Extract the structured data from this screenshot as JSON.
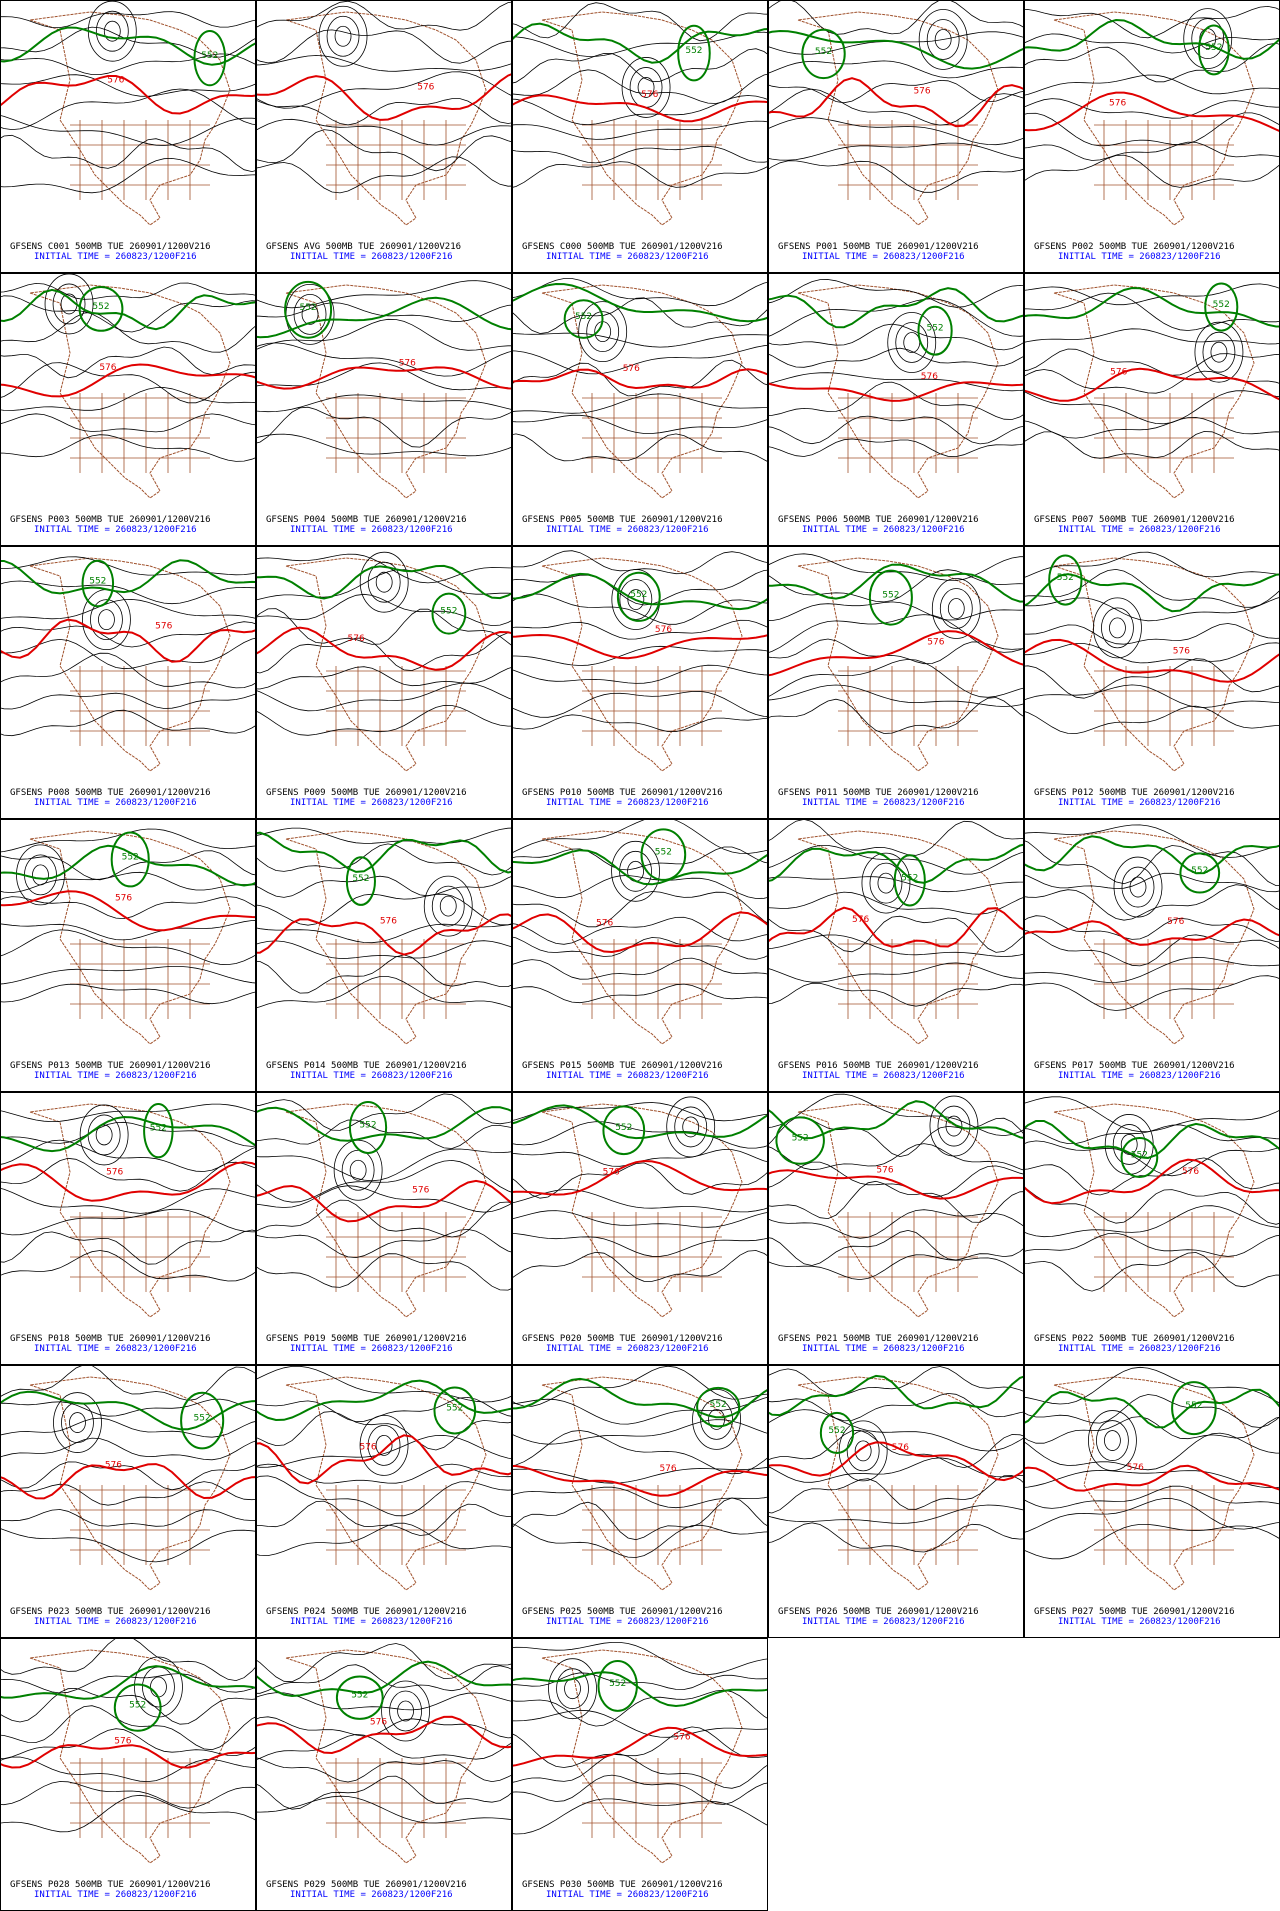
{
  "panels": [
    {
      "model": "GFSENS C001 500MB TUE 260901/1200V216",
      "initial": "INITIAL TIME = 260823/1200F216",
      "contours": [
        "552",
        "576"
      ]
    },
    {
      "model": "GFSENS AVG 500MB TUE 260901/1200V216",
      "initial": "INITIAL TIME = 260823/1200F216",
      "contours": [
        "576"
      ]
    },
    {
      "model": "GFSENS C000 500MB TUE 260901/1200V216",
      "initial": "INITIAL TIME = 260823/1200F216",
      "contours": [
        "552",
        "576"
      ]
    },
    {
      "model": "GFSENS P001 500MB TUE 260901/1200V216",
      "initial": "INITIAL TIME = 260823/1200F216",
      "contours": [
        "552",
        "576"
      ]
    },
    {
      "model": "GFSENS P002 500MB TUE 260901/1200V216",
      "initial": "INITIAL TIME = 260823/1200F216",
      "contours": [
        "552",
        "576"
      ]
    },
    {
      "model": "GFSENS P003 500MB TUE 260901/1200V216",
      "initial": "INITIAL TIME = 260823/1200F216",
      "contours": [
        "552",
        "576"
      ]
    },
    {
      "model": "GFSENS P004 500MB TUE 260901/1200V216",
      "initial": "INITIAL TIME = 260823/1200F216",
      "contours": [
        "552",
        "576"
      ]
    },
    {
      "model": "GFSENS P005 500MB TUE 260901/1200V216",
      "initial": "INITIAL TIME = 260823/1200F216",
      "contours": [
        "552",
        "576"
      ]
    },
    {
      "model": "GFSENS P006 500MB TUE 260901/1200V216",
      "initial": "INITIAL TIME = 260823/1200F216",
      "contours": [
        "552",
        "576"
      ]
    },
    {
      "model": "GFSENS P007 500MB TUE 260901/1200V216",
      "initial": "INITIAL TIME = 260823/1200F216",
      "contours": [
        "552",
        "576"
      ]
    },
    {
      "model": "GFSENS P008 500MB TUE 260901/1200V216",
      "initial": "INITIAL TIME = 260823/1200F216",
      "contours": [
        "552",
        "576"
      ]
    },
    {
      "model": "GFSENS P009 500MB TUE 260901/1200V216",
      "initial": "INITIAL TIME = 260823/1200F216",
      "contours": [
        "552",
        "576"
      ]
    },
    {
      "model": "GFSENS P010 500MB TUE 260901/1200V216",
      "initial": "INITIAL TIME = 260823/1200F216",
      "contours": [
        "552",
        "576"
      ]
    },
    {
      "model": "GFSENS P011 500MB TUE 260901/1200V216",
      "initial": "INITIAL TIME = 260823/1200F216",
      "contours": [
        "552",
        "576"
      ]
    },
    {
      "model": "GFSENS P012 500MB TUE 260901/1200V216",
      "initial": "INITIAL TIME = 260823/1200F216",
      "contours": [
        "552",
        "576"
      ]
    },
    {
      "model": "GFSENS P013 500MB TUE 260901/1200V216",
      "initial": "INITIAL TIME = 260823/1200F216",
      "contours": [
        "552",
        "576"
      ]
    },
    {
      "model": "GFSENS P014 500MB TUE 260901/1200V216",
      "initial": "INITIAL TIME = 260823/1200F216",
      "contours": [
        "552",
        "576"
      ]
    },
    {
      "model": "GFSENS P015 500MB TUE 260901/1200V216",
      "initial": "INITIAL TIME = 260823/1200F216",
      "contours": [
        "552",
        "576"
      ]
    },
    {
      "model": "GFSENS P016 500MB TUE 260901/1200V216",
      "initial": "INITIAL TIME = 260823/1200F216",
      "contours": [
        "552",
        "576"
      ]
    },
    {
      "model": "GFSENS P017 500MB TUE 260901/1200V216",
      "initial": "INITIAL TIME = 260823/1200F216",
      "contours": [
        "552",
        "576"
      ]
    },
    {
      "model": "GFSENS P018 500MB TUE 260901/1200V216",
      "initial": "INITIAL TIME = 260823/1200F216",
      "contours": [
        "552",
        "576"
      ]
    },
    {
      "model": "GFSENS P019 500MB TUE 260901/1200V216",
      "initial": "INITIAL TIME = 260823/1200F216",
      "contours": [
        "552",
        "576"
      ]
    },
    {
      "model": "GFSENS P020 500MB TUE 260901/1200V216",
      "initial": "INITIAL TIME = 260823/1200F216",
      "contours": [
        "552",
        "576"
      ]
    },
    {
      "model": "GFSENS P021 500MB TUE 260901/1200V216",
      "initial": "INITIAL TIME = 260823/1200F216",
      "contours": [
        "552",
        "576"
      ]
    },
    {
      "model": "GFSENS P022 500MB TUE 260901/1200V216",
      "initial": "INITIAL TIME = 260823/1200F216",
      "contours": [
        "552",
        "576"
      ]
    },
    {
      "model": "GFSENS P023 500MB TUE 260901/1200V216",
      "initial": "INITIAL TIME = 260823/1200F216",
      "contours": [
        "552",
        "576"
      ]
    },
    {
      "model": "GFSENS P024 500MB TUE 260901/1200V216",
      "initial": "INITIAL TIME = 260823/1200F216",
      "contours": [
        "552",
        "576"
      ]
    },
    {
      "model": "GFSENS P025 500MB TUE 260901/1200V216",
      "initial": "INITIAL TIME = 260823/1200F216",
      "contours": [
        "552",
        "576"
      ]
    },
    {
      "model": "GFSENS P026 500MB TUE 260901/1200V216",
      "initial": "INITIAL TIME = 260823/1200F216",
      "contours": [
        "552",
        "576"
      ]
    },
    {
      "model": "GFSENS P027 500MB TUE 260901/1200V216",
      "initial": "INITIAL TIME = 260823/1200F216",
      "contours": [
        "552",
        "576"
      ]
    },
    {
      "model": "GFSENS P028 500MB TUE 260901/1200V216",
      "initial": "INITIAL TIME = 260823/1200F216",
      "contours": [
        "552",
        "576"
      ]
    },
    {
      "model": "GFSENS P029 500MB TUE 260901/1200V216",
      "initial": "INITIAL TIME = 260823/1200F216",
      "contours": [
        "552",
        "576"
      ]
    },
    {
      "model": "GFSENS P030 500MB TUE 260901/1200V216",
      "initial": "INITIAL TIME = 260823/1200F216",
      "contours": [
        "552",
        "576"
      ]
    }
  ]
}
